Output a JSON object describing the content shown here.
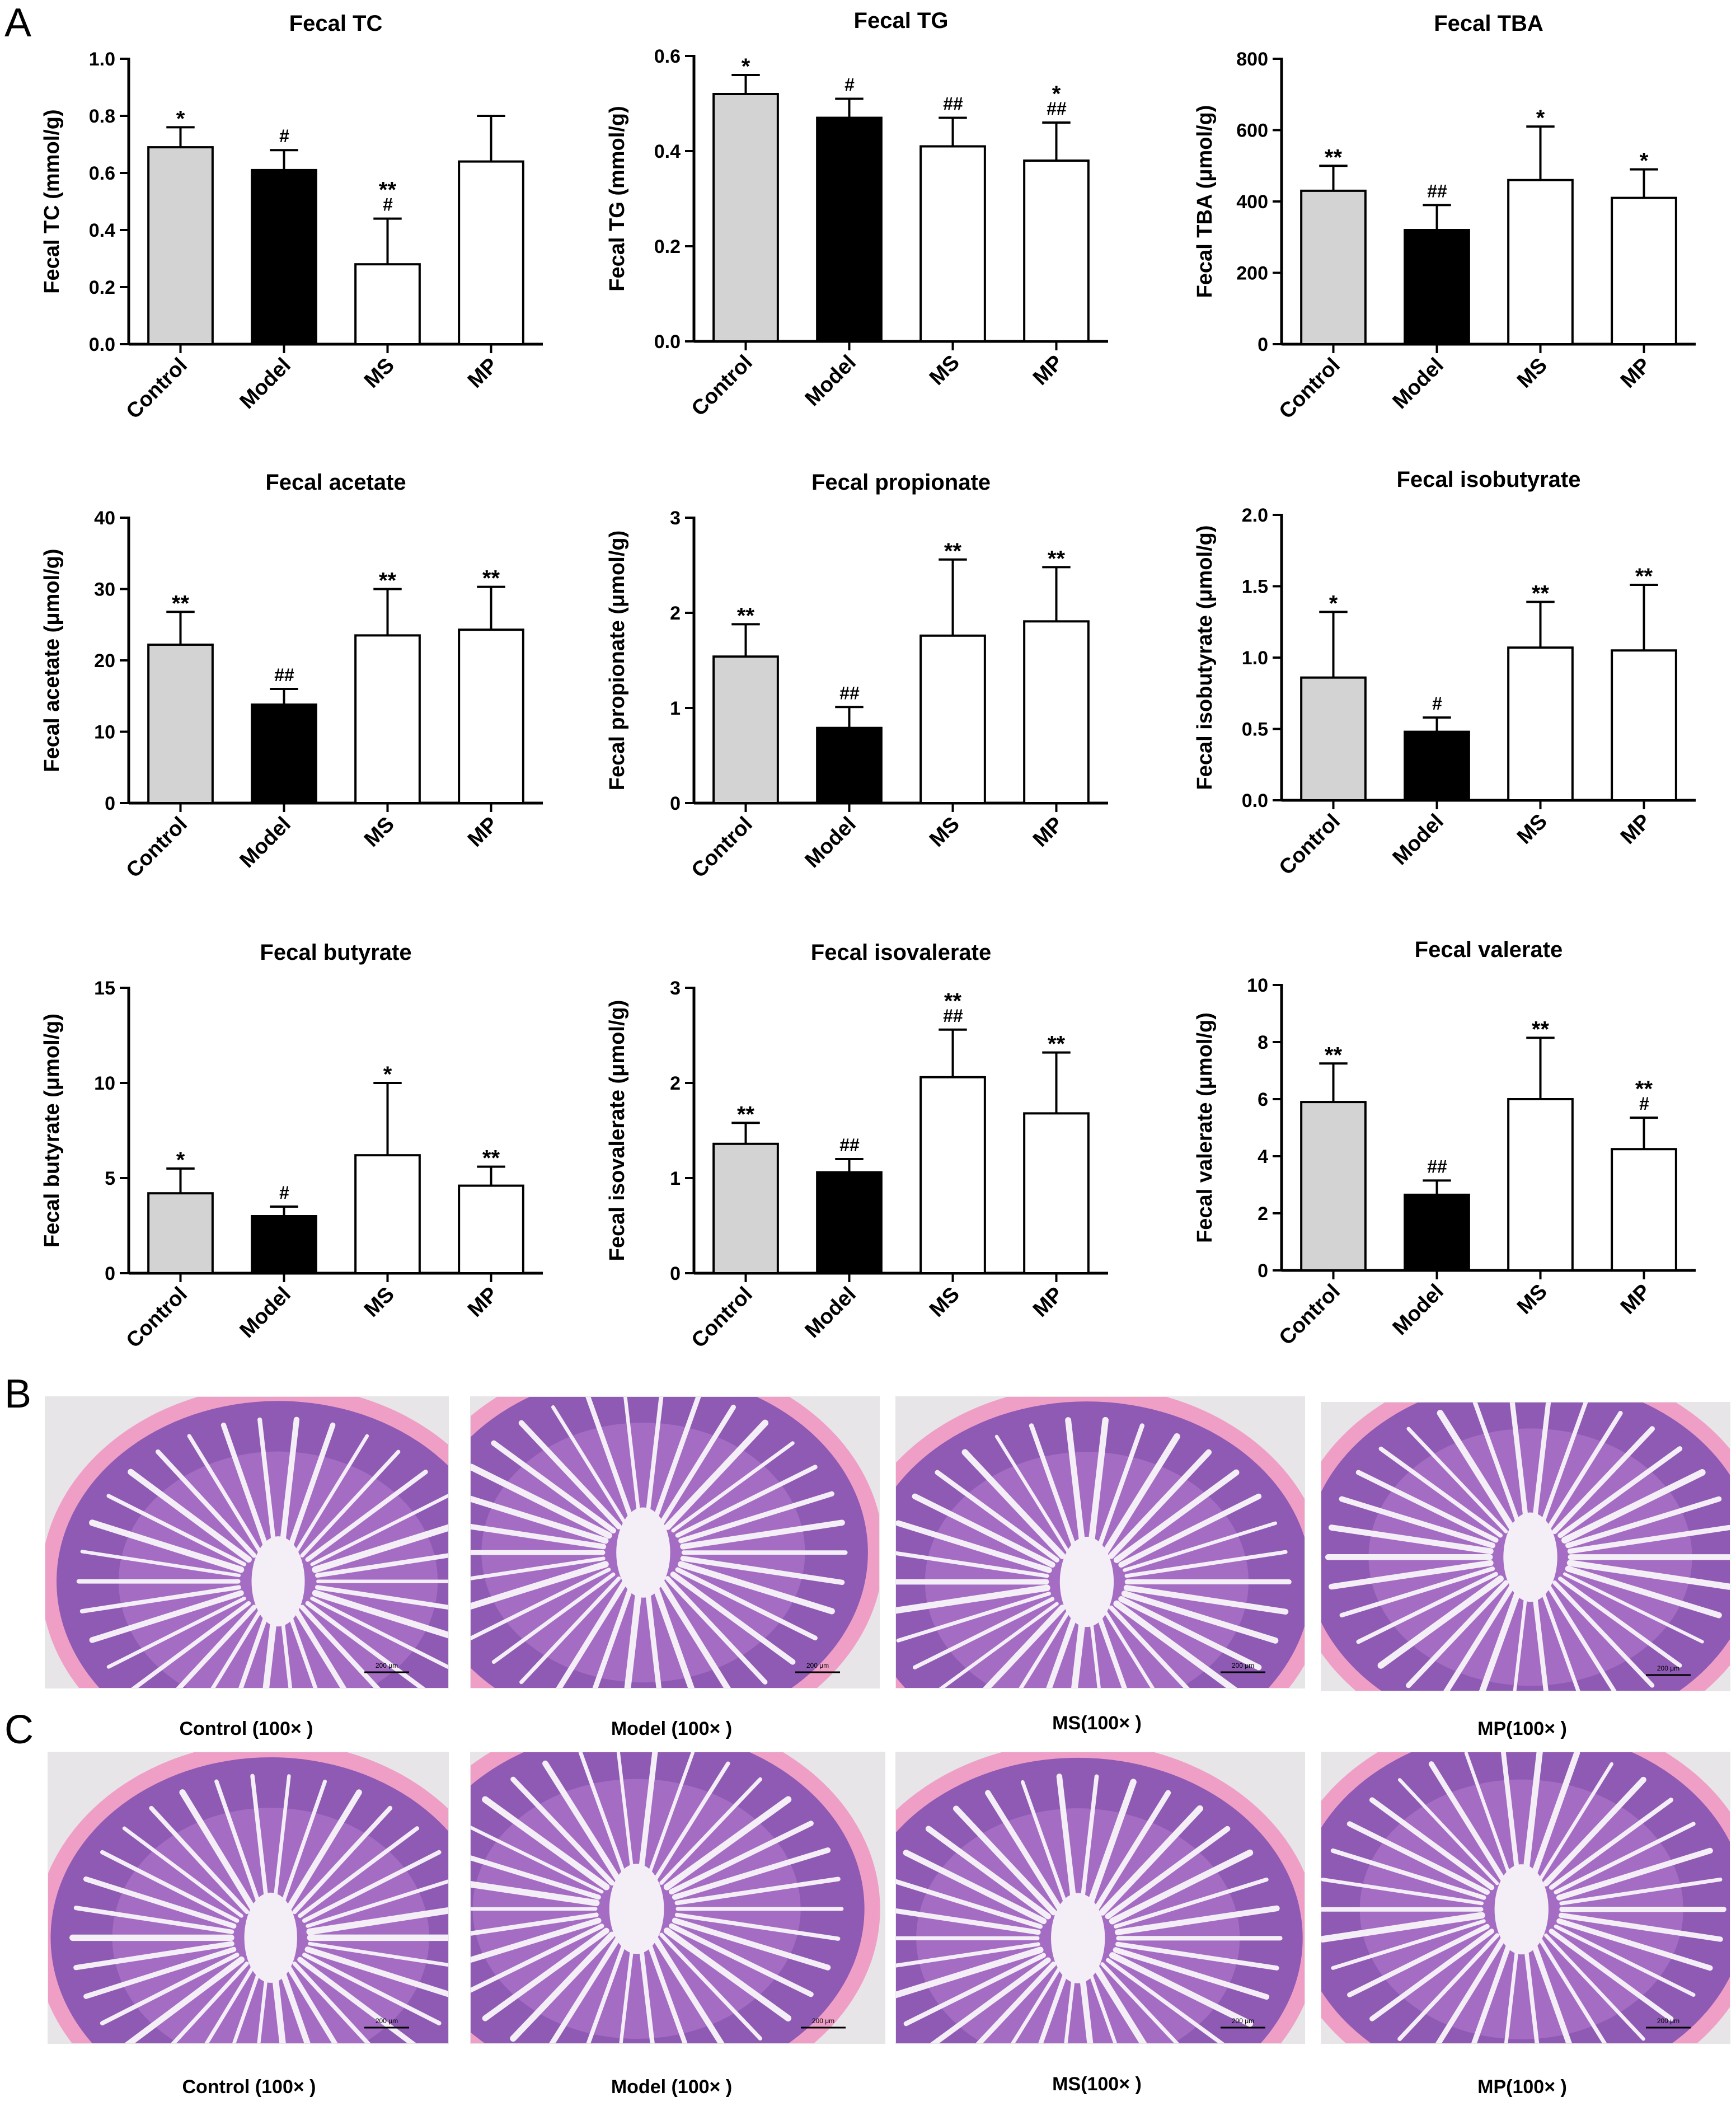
{
  "panels": {
    "a": "A",
    "b": "B",
    "c": "C"
  },
  "chart_data": [
    {
      "type": "bar",
      "title": "Fecal TC",
      "ylabel": "Fecal TC (mmol/g)",
      "categories": [
        "Control",
        "Model",
        "MS",
        "MP"
      ],
      "values": [
        0.69,
        0.61,
        0.28,
        0.64
      ],
      "errors": [
        0.07,
        0.07,
        0.16,
        0.16
      ],
      "ylim": [
        0,
        1.0
      ],
      "yticks": [
        "0.0",
        "0.2",
        "0.4",
        "0.6",
        "0.8",
        "1.0"
      ],
      "tick_values": [
        0,
        0.2,
        0.4,
        0.6,
        0.8,
        1.0
      ],
      "annotations": [
        [
          "*"
        ],
        [
          "#"
        ],
        [
          "**",
          "#"
        ],
        []
      ]
    },
    {
      "type": "bar",
      "title": "Fecal TG",
      "ylabel": "Fecal TG (mmol/g)",
      "categories": [
        "Control",
        "Model",
        "MS",
        "MP"
      ],
      "values": [
        0.52,
        0.47,
        0.41,
        0.38
      ],
      "errors": [
        0.04,
        0.04,
        0.06,
        0.08
      ],
      "ylim": [
        0,
        0.6
      ],
      "yticks": [
        "0.0",
        "0.2",
        "0.4",
        "0.6"
      ],
      "tick_values": [
        0,
        0.2,
        0.4,
        0.6
      ],
      "annotations": [
        [
          "*"
        ],
        [
          "#"
        ],
        [
          "##"
        ],
        [
          "*",
          "##"
        ]
      ]
    },
    {
      "type": "bar",
      "title": "Fecal TBA",
      "ylabel": "Fecal TBA (μmol/g)",
      "categories": [
        "Control",
        "Model",
        "MS",
        "MP"
      ],
      "values": [
        430,
        320,
        460,
        410
      ],
      "errors": [
        70,
        70,
        150,
        80
      ],
      "ylim": [
        0,
        800
      ],
      "yticks": [
        "0",
        "200",
        "400",
        "600",
        "800"
      ],
      "tick_values": [
        0,
        200,
        400,
        600,
        800
      ],
      "annotations": [
        [
          "**"
        ],
        [
          "##"
        ],
        [
          "*"
        ],
        [
          "*"
        ]
      ]
    },
    {
      "type": "bar",
      "title": "Fecal acetate",
      "ylabel": "Fecal acetate (μmol/g)",
      "categories": [
        "Control",
        "Model",
        "MS",
        "MP"
      ],
      "values": [
        22.2,
        13.8,
        23.5,
        24.3
      ],
      "errors": [
        4.6,
        2.2,
        6.5,
        6.0
      ],
      "ylim": [
        0,
        40
      ],
      "yticks": [
        "0",
        "10",
        "20",
        "30",
        "40"
      ],
      "tick_values": [
        0,
        10,
        20,
        30,
        40
      ],
      "annotations": [
        [
          "**"
        ],
        [
          "##"
        ],
        [
          "**"
        ],
        [
          "**"
        ]
      ]
    },
    {
      "type": "bar",
      "title": "Fecal propionate",
      "ylabel": "Fecal propionate (μmol/g)",
      "categories": [
        "Control",
        "Model",
        "MS",
        "MP"
      ],
      "values": [
        1.54,
        0.79,
        1.76,
        1.91
      ],
      "errors": [
        0.34,
        0.22,
        0.8,
        0.57
      ],
      "ylim": [
        0,
        3
      ],
      "yticks": [
        "0",
        "1",
        "2",
        "3"
      ],
      "tick_values": [
        0,
        1,
        2,
        3
      ],
      "annotations": [
        [
          "**"
        ],
        [
          "##"
        ],
        [
          "**"
        ],
        [
          "**"
        ]
      ]
    },
    {
      "type": "bar",
      "title": "Fecal isobutyrate",
      "ylabel": "Fecal isobutyrate (μmol/g)",
      "categories": [
        "Control",
        "Model",
        "MS",
        "MP"
      ],
      "values": [
        0.86,
        0.48,
        1.07,
        1.05
      ],
      "errors": [
        0.46,
        0.1,
        0.32,
        0.46
      ],
      "ylim": [
        0,
        2.0
      ],
      "yticks": [
        "0.0",
        "0.5",
        "1.0",
        "1.5",
        "2.0"
      ],
      "tick_values": [
        0,
        0.5,
        1.0,
        1.5,
        2.0
      ],
      "annotations": [
        [
          "*"
        ],
        [
          "#"
        ],
        [
          "**"
        ],
        [
          "**"
        ]
      ]
    },
    {
      "type": "bar",
      "title": "Fecal butyrate",
      "ylabel": "Fecal butyrate (μmol/g)",
      "categories": [
        "Control",
        "Model",
        "MS",
        "MP"
      ],
      "values": [
        4.2,
        3.0,
        6.2,
        4.6
      ],
      "errors": [
        1.3,
        0.5,
        3.8,
        1.0
      ],
      "ylim": [
        0,
        15
      ],
      "yticks": [
        "0",
        "5",
        "10",
        "15"
      ],
      "tick_values": [
        0,
        5,
        10,
        15
      ],
      "annotations": [
        [
          "*"
        ],
        [
          "#"
        ],
        [
          "*"
        ],
        [
          "**"
        ]
      ]
    },
    {
      "type": "bar",
      "title": "Fecal isovalerate",
      "ylabel": "Fecal isovalerate (μmol/g)",
      "categories": [
        "Control",
        "Model",
        "MS",
        "MP"
      ],
      "values": [
        1.36,
        1.06,
        2.06,
        1.68
      ],
      "errors": [
        0.22,
        0.14,
        0.5,
        0.64
      ],
      "ylim": [
        0,
        3
      ],
      "yticks": [
        "0",
        "1",
        "2",
        "3"
      ],
      "tick_values": [
        0,
        1,
        2,
        3
      ],
      "annotations": [
        [
          "**"
        ],
        [
          "##"
        ],
        [
          "**",
          "##"
        ],
        [
          "**"
        ]
      ]
    },
    {
      "type": "bar",
      "title": "Fecal valerate",
      "ylabel": "Fecal valerate (μmol/g)",
      "categories": [
        "Control",
        "Model",
        "MS",
        "MP"
      ],
      "values": [
        5.9,
        2.65,
        6.0,
        4.25
      ],
      "errors": [
        1.35,
        0.5,
        2.15,
        1.1
      ],
      "ylim": [
        0,
        10
      ],
      "yticks": [
        "0",
        "2",
        "4",
        "6",
        "8",
        "10"
      ],
      "tick_values": [
        0,
        2,
        4,
        6,
        8,
        10
      ],
      "annotations": [
        [
          "**"
        ],
        [
          "##"
        ],
        [
          "**"
        ],
        [
          "**",
          "#"
        ]
      ]
    }
  ],
  "bar_colors": [
    "#d3d3d3",
    "#000000",
    "#ffffff",
    "#ffffff"
  ],
  "histology_b": {
    "captions": [
      "Control (100× )",
      "Model (100× )",
      "MS(100× )",
      "MP(100× )"
    ],
    "scale": "200 μm"
  },
  "histology_c": {
    "captions": [
      "Control (100× )",
      "Model (100× )",
      "MS(100× )",
      "MP(100× )"
    ],
    "scale": "200 μm"
  }
}
